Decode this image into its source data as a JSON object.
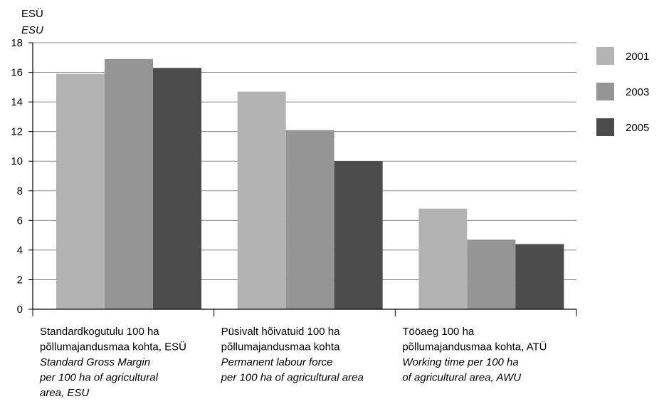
{
  "chart_data": {
    "type": "bar",
    "y_unit": "ESÜ",
    "y_unit_en": "ESU",
    "ylim": [
      0,
      18
    ],
    "y_ticks": [
      0,
      2,
      4,
      6,
      8,
      10,
      12,
      14,
      16,
      18
    ],
    "grid": true,
    "legend_position": "right",
    "categories": [
      {
        "label_et": [
          "Standardkogutulu 100 ha",
          "põllumajandusmaa kohta, ESÜ"
        ],
        "label_en": [
          "Standard Gross Margin",
          "per 100 ha of agricultural",
          "area, ESU"
        ]
      },
      {
        "label_et": [
          "Püsivalt hõivatuid 100 ha",
          "põllumajandusmaa kohta"
        ],
        "label_en": [
          "Permanent labour force",
          "per 100 ha of agricultural area"
        ]
      },
      {
        "label_et": [
          "Tööaeg 100 ha",
          "põllumajandusmaa kohta, ATÜ"
        ],
        "label_en": [
          "Working time per 100 ha",
          "of agricultural area, AWU"
        ]
      }
    ],
    "series": [
      {
        "name": "2001",
        "color": "#b3b3b3",
        "values": [
          15.9,
          14.7,
          6.8
        ]
      },
      {
        "name": "2003",
        "color": "#959595",
        "values": [
          16.9,
          12.1,
          4.7
        ]
      },
      {
        "name": "2005",
        "color": "#4b4b4b",
        "values": [
          16.3,
          10.0,
          4.4
        ]
      }
    ]
  }
}
